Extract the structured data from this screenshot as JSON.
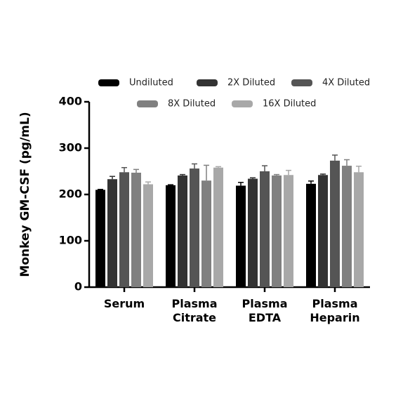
{
  "chart_data": {
    "type": "bar",
    "y_label": "Monkey GM-CSF (pg/mL)",
    "categories": [
      [
        "Serum"
      ],
      [
        "Plasma",
        "Citrate"
      ],
      [
        "Plasma",
        "EDTA"
      ],
      [
        "Plasma",
        "Heparin"
      ]
    ],
    "series": [
      {
        "name": "Undiluted",
        "color": "#000000",
        "values": [
          210,
          220,
          219,
          223
        ],
        "errors": [
          1,
          1,
          7,
          6
        ]
      },
      {
        "name": "2X Diluted",
        "color": "#333333",
        "values": [
          233,
          241,
          234,
          242
        ],
        "errors": [
          6,
          2,
          2,
          2
        ]
      },
      {
        "name": "4X Diluted",
        "color": "#555555",
        "values": [
          248,
          256,
          250,
          273
        ],
        "errors": [
          10,
          10,
          12,
          12
        ]
      },
      {
        "name": "8X Diluted",
        "color": "#808080",
        "values": [
          247,
          230,
          241,
          262
        ],
        "errors": [
          7,
          33,
          2,
          13
        ]
      },
      {
        "name": "16X Diluted",
        "color": "#a8a8a8",
        "values": [
          222,
          258,
          242,
          248
        ],
        "errors": [
          5,
          2,
          10,
          13
        ]
      }
    ],
    "ylim": [
      0,
      400
    ],
    "yticks": [
      0,
      100,
      200,
      300,
      400
    ]
  }
}
